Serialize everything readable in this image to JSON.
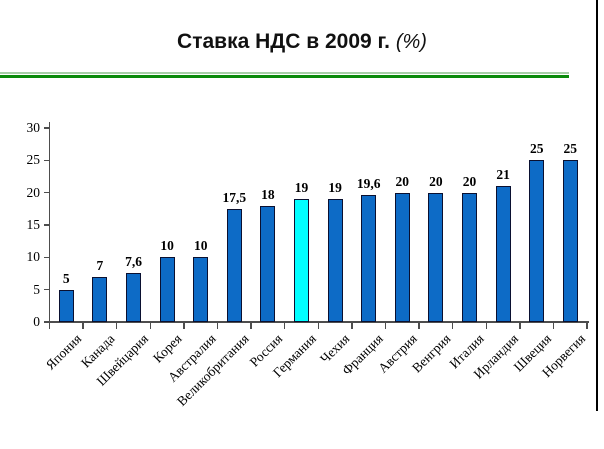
{
  "title": {
    "main": "Ставка НДС в 2009 г.",
    "suffix": "(%)"
  },
  "chart_data": {
    "type": "bar",
    "title": "Ставка НДС в 2009 г. (%)",
    "categories": [
      "Япония",
      "Канада",
      "Швейцария",
      "Корея",
      "Австралия",
      "Великобритания",
      "Россия",
      "Германия",
      "Чехия",
      "Франция",
      "Австрия",
      "Венгрия",
      "Италия",
      "Ирландия",
      "Швеция",
      "Норвегия"
    ],
    "values": [
      5,
      7,
      7.6,
      10,
      10,
      17.5,
      18,
      19,
      19,
      19.6,
      20,
      20,
      20,
      21,
      25,
      25
    ],
    "value_labels": [
      "5",
      "7",
      "7,6",
      "10",
      "10",
      "17,5",
      "18",
      "19",
      "19",
      "19,6",
      "20",
      "20",
      "20",
      "21",
      "25",
      "25"
    ],
    "highlight_index": 7,
    "highlight_category": "Германия",
    "xlabel": "",
    "ylabel": "",
    "ylim": [
      0,
      30
    ],
    "yticks": [
      0,
      5,
      10,
      15,
      20,
      25,
      30
    ],
    "grid": false,
    "legend": "none",
    "colors": {
      "bar_fill": "#0d6bc6",
      "bar_highlight_fill": "#00ffff",
      "bar_border": "#0a1030",
      "axis": "#4d4d4d",
      "label_text": "#000000"
    }
  },
  "decor": {
    "separator_light_color": "#a7cfa7",
    "separator_dark_color": "#0a8a0a",
    "frame_color": "#000000"
  }
}
